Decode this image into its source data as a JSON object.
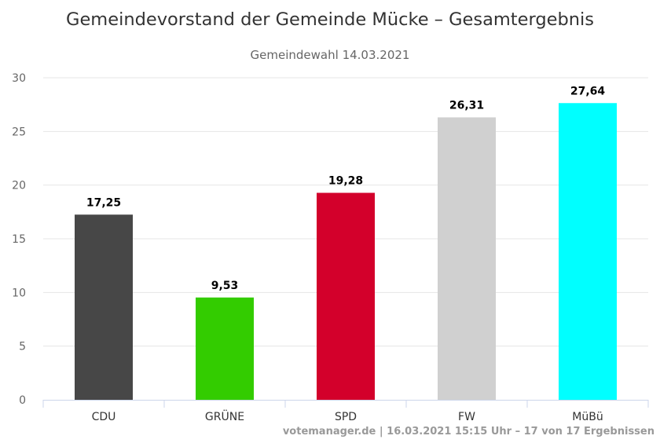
{
  "chart_data": {
    "type": "bar",
    "title": "Gemeindevorstand der Gemeinde Mücke – Gesamtergebnis",
    "subtitle": "Gemeindewahl 14.03.2021",
    "xlabel": "",
    "ylabel": "",
    "categories": [
      "CDU",
      "GRÜNE",
      "SPD",
      "FW",
      "MüBü"
    ],
    "values": [
      17.25,
      9.53,
      19.28,
      26.31,
      27.64
    ],
    "value_labels": [
      "17,25",
      "9,53",
      "19,28",
      "26,31",
      "27,64"
    ],
    "colors": [
      "#474747",
      "#33cc00",
      "#d3002b",
      "#d0d0d0",
      "#00ffff"
    ],
    "ylim": [
      0,
      30
    ],
    "yticks": [
      0,
      5,
      10,
      15,
      20,
      25,
      30
    ],
    "ytick_labels": [
      "0",
      "5",
      "10",
      "15",
      "20",
      "25",
      "30"
    ],
    "grid": true,
    "legend": "none"
  },
  "credits": "votemanager.de | 16.03.2021 15:15 Uhr – 17 von 17 Ergebnissen"
}
